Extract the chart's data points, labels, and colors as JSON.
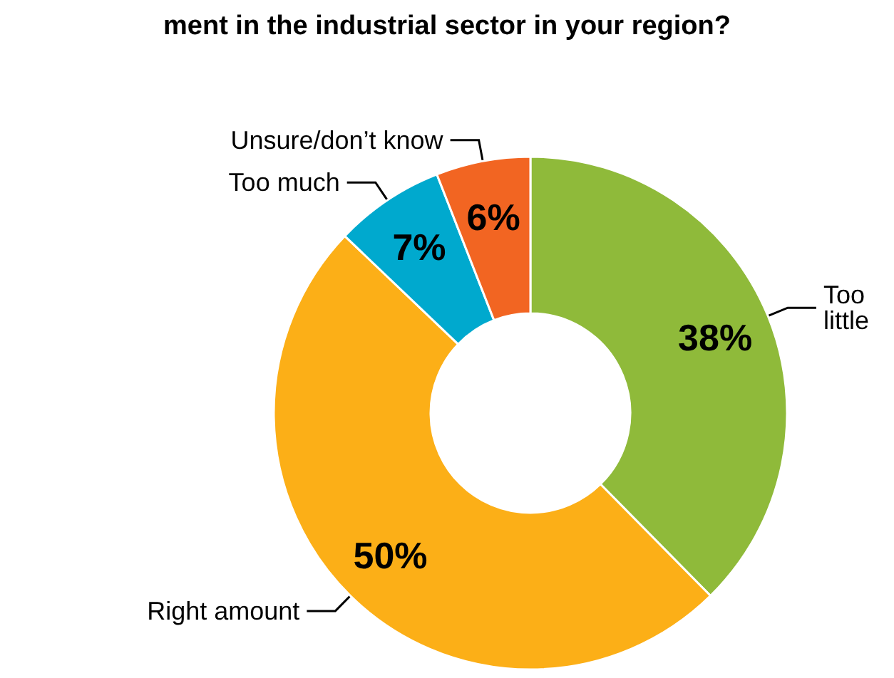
{
  "chart_data": {
    "type": "donut",
    "title": "ment in the industrial sector in your region?",
    "categories": [
      "Too little",
      "Right amount",
      "Too much",
      "Unsure/don’t know"
    ],
    "values": [
      38,
      50,
      7,
      6
    ],
    "colors": [
      "#8fba3a",
      "#fcaf17",
      "#00a9ce",
      "#f26522"
    ],
    "value_labels": [
      "38%",
      "50%",
      "7%",
      "6%"
    ],
    "legend": false
  }
}
